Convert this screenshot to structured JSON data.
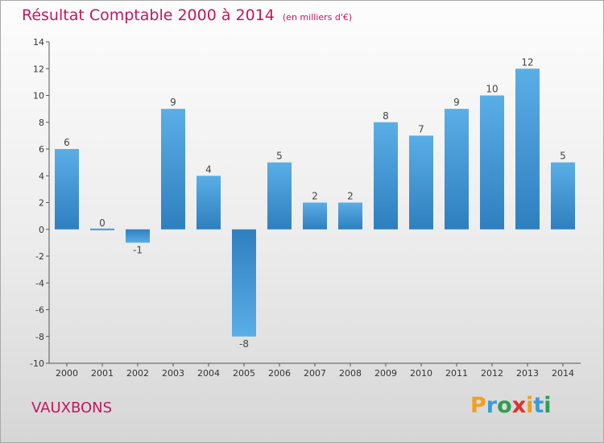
{
  "title": "Résultat Comptable 2000 à 2014",
  "subtitle": "(en milliers d'€)",
  "place_name": "VAUXBONS",
  "logo": {
    "text": "Proxiti",
    "letters": [
      "P",
      "r",
      "o",
      "x",
      "i",
      "t",
      "i"
    ],
    "colors": [
      "#f0a01e",
      "#3c9bd6",
      "#2e9e4f",
      "#e0312b",
      "#f0a01e",
      "#3c9bd6",
      "#2e9e4f"
    ]
  },
  "colors": {
    "bar_light": "#5aaee6",
    "bar_dark": "#2f7fbf",
    "accent": "#c2185b"
  },
  "chart_data": {
    "type": "bar",
    "title": "Résultat Comptable 2000 à 2014",
    "subtitle": "(en milliers d'€)",
    "categories": [
      "2000",
      "2001",
      "2002",
      "2003",
      "2004",
      "2005",
      "2006",
      "2007",
      "2008",
      "2009",
      "2010",
      "2011",
      "2012",
      "2013",
      "2014"
    ],
    "values": [
      6,
      0,
      -1,
      9,
      4,
      -8,
      5,
      2,
      2,
      8,
      7,
      9,
      10,
      12,
      5
    ],
    "ylim": [
      -10,
      14
    ],
    "yticks": [
      -10,
      -8,
      -6,
      -4,
      -2,
      0,
      2,
      4,
      6,
      8,
      10,
      12,
      14
    ],
    "xlabel": "",
    "ylabel": "",
    "grid": false,
    "legend": "none"
  }
}
